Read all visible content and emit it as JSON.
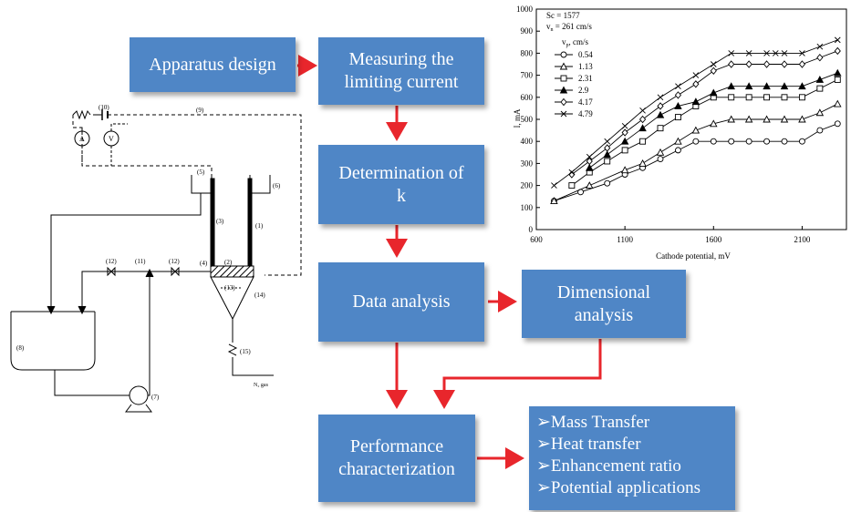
{
  "flow": {
    "apparatus_design": "Apparatus design",
    "measuring_line1": "Measuring the",
    "measuring_line2": "limiting  current",
    "determination_line1": "Determination of",
    "determination_line2": "k",
    "data_analysis": "Data analysis",
    "dimensional_line1": "Dimensional",
    "dimensional_line2": "analysis",
    "performance_line1": "Performance",
    "performance_line2": "characterization",
    "applications": [
      "Mass Transfer",
      "Heat transfer",
      "Enhancement ratio",
      "Potential applications"
    ],
    "bullet_glyph": "➢"
  },
  "apparatus_labels": {
    "l1": "(1)",
    "l2": "(2)",
    "l3": "(3)",
    "l4": "(4)",
    "l5": "(5)",
    "l6": "(6)",
    "l7": "(7)",
    "l8": "(8)",
    "l9": "(9)",
    "l10": "(10)",
    "l11": "(11)",
    "l12a": "(12)",
    "l12b": "(12)",
    "l13": "(13)",
    "l14": "(14)",
    "l15": "(15)",
    "ammeter": "A",
    "voltmeter": "V",
    "gas": "N₂ gas"
  },
  "colors": {
    "box": "#4f86c6",
    "arrow": "#e8262c"
  },
  "chart_data": {
    "type": "line",
    "sc_label": "Sc = 1577",
    "vn_label": "v",
    "vn_sub": "n",
    "vn_value": " = 261 cm/s",
    "legend_title": "v",
    "legend_title_sub": "p",
    "legend_title_unit": ",  cm/s",
    "xlabel": "Cathode potential,  mV",
    "ylabel": "I, mA",
    "xlim": [
      600,
      2350
    ],
    "ylim": [
      0,
      1000
    ],
    "xticks": [
      "600",
      "1100",
      "1600",
      "2100"
    ],
    "yticks": [
      "0",
      "100",
      "200",
      "300",
      "400",
      "500",
      "600",
      "700",
      "800",
      "900",
      "1000"
    ],
    "series": [
      {
        "name": "0.54",
        "marker": "circle",
        "x": [
          700,
          850,
          1000,
          1100,
          1200,
          1300,
          1400,
          1500,
          1600,
          1700,
          1800,
          1900,
          2000,
          2100,
          2200,
          2300
        ],
        "y": [
          130,
          170,
          210,
          250,
          280,
          320,
          360,
          400,
          400,
          400,
          400,
          400,
          400,
          400,
          450,
          480
        ]
      },
      {
        "name": "1.13",
        "marker": "triangle-open",
        "x": [
          700,
          900,
          1100,
          1200,
          1300,
          1400,
          1500,
          1600,
          1700,
          1800,
          1900,
          2000,
          2100,
          2200,
          2300
        ],
        "y": [
          130,
          200,
          270,
          300,
          350,
          400,
          450,
          480,
          500,
          500,
          500,
          500,
          500,
          530,
          570
        ]
      },
      {
        "name": "2.31",
        "marker": "square",
        "x": [
          800,
          900,
          1000,
          1100,
          1200,
          1300,
          1400,
          1500,
          1600,
          1700,
          1800,
          1900,
          2000,
          2100,
          2200,
          2300
        ],
        "y": [
          200,
          260,
          310,
          360,
          400,
          460,
          510,
          560,
          600,
          600,
          600,
          600,
          600,
          600,
          640,
          680
        ]
      },
      {
        "name": "2.9",
        "marker": "triangle-filled",
        "x": [
          900,
          1000,
          1100,
          1200,
          1300,
          1400,
          1500,
          1600,
          1700,
          1800,
          1900,
          2000,
          2100,
          2200,
          2300
        ],
        "y": [
          280,
          340,
          400,
          460,
          520,
          560,
          580,
          620,
          650,
          650,
          650,
          650,
          650,
          680,
          710
        ]
      },
      {
        "name": "4.17",
        "marker": "diamond",
        "x": [
          800,
          900,
          1000,
          1100,
          1200,
          1300,
          1400,
          1500,
          1600,
          1700,
          1800,
          1900,
          2000,
          2100,
          2200,
          2300
        ],
        "y": [
          250,
          310,
          370,
          440,
          500,
          560,
          610,
          660,
          720,
          750,
          750,
          750,
          750,
          750,
          780,
          810
        ]
      },
      {
        "name": "4.79",
        "marker": "cross",
        "x": [
          700,
          800,
          900,
          1000,
          1100,
          1200,
          1300,
          1400,
          1500,
          1600,
          1700,
          1800,
          1900,
          1950,
          2000,
          2100,
          2200,
          2300
        ],
        "y": [
          200,
          260,
          330,
          400,
          470,
          540,
          600,
          650,
          700,
          750,
          800,
          800,
          800,
          800,
          800,
          800,
          830,
          860
        ]
      }
    ]
  }
}
